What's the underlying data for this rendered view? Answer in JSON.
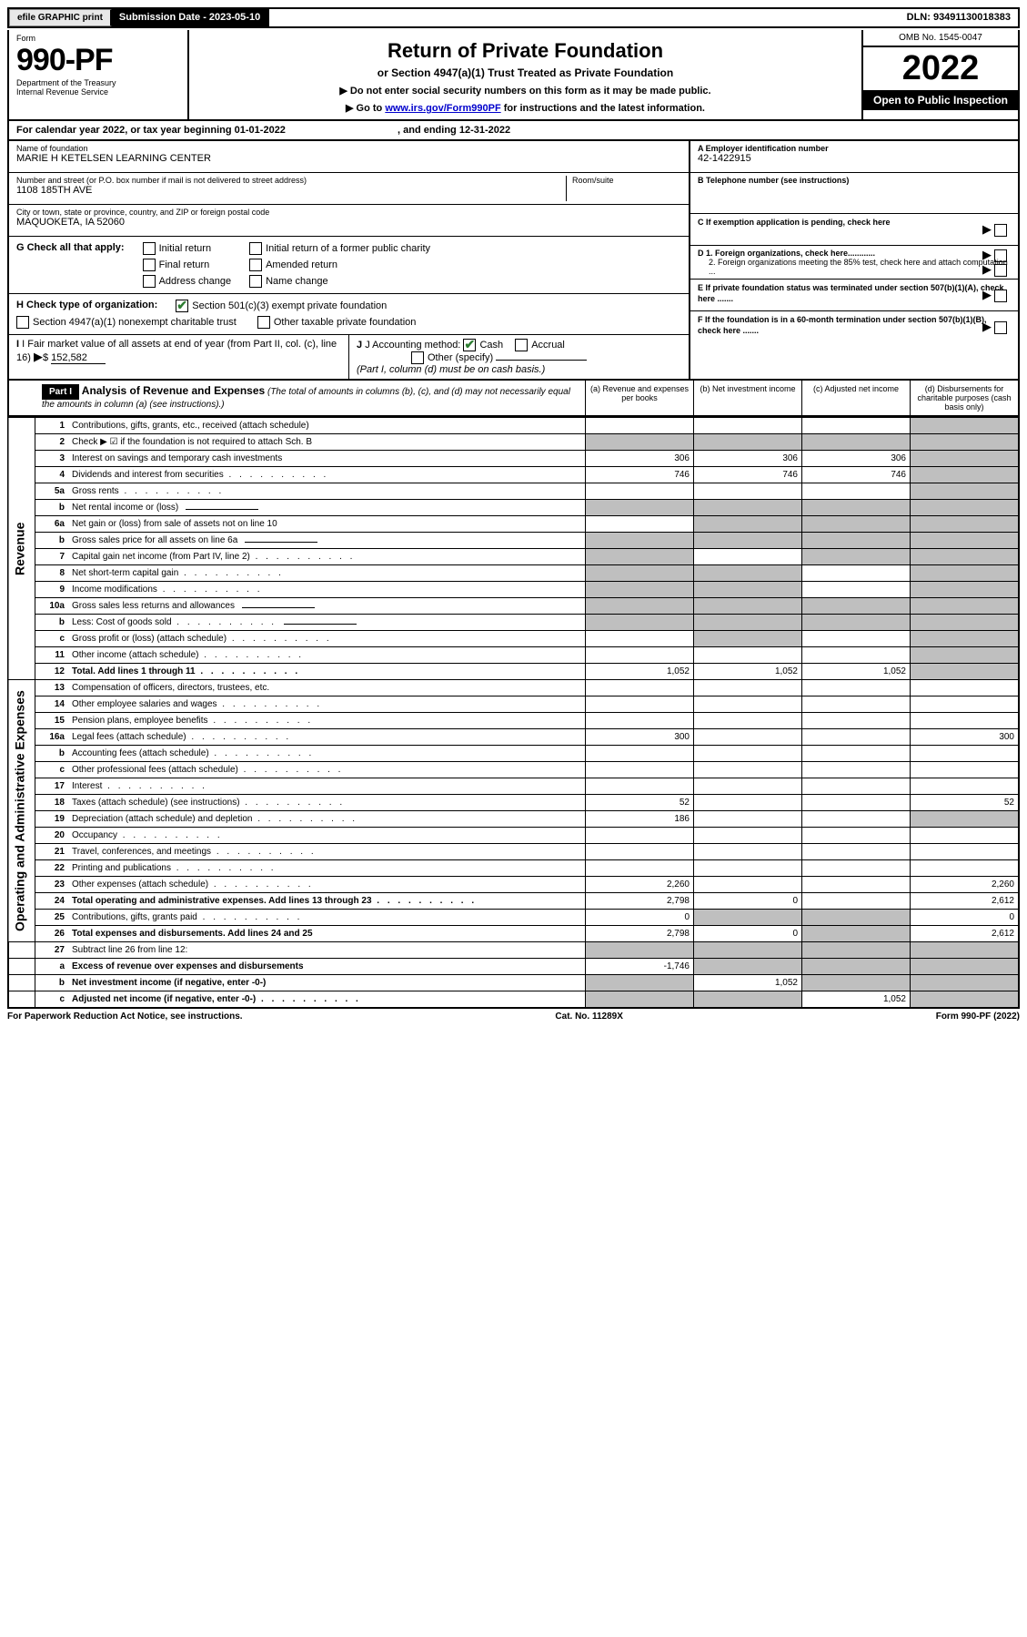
{
  "topbar": {
    "efile": "efile GRAPHIC print",
    "submission_label": "Submission Date - 2023-05-10",
    "dln": "DLN: 93491130018383"
  },
  "header": {
    "form_label": "Form",
    "form_no": "990-PF",
    "dept1": "Department of the Treasury",
    "dept2": "Internal Revenue Service",
    "title": "Return of Private Foundation",
    "subtitle": "or Section 4947(a)(1) Trust Treated as Private Foundation",
    "instr1": "▶ Do not enter social security numbers on this form as it may be made public.",
    "instr2_pre": "▶ Go to ",
    "instr2_link": "www.irs.gov/Form990PF",
    "instr2_post": " for instructions and the latest information.",
    "omb": "OMB No. 1545-0047",
    "year": "2022",
    "open": "Open to Public Inspection"
  },
  "calyear": {
    "text_pre": "For calendar year 2022, or tax year beginning ",
    "begin": "01-01-2022",
    "text_mid": ", and ending ",
    "end": "12-31-2022"
  },
  "info": {
    "name_label": "Name of foundation",
    "name": "MARIE H KETELSEN LEARNING CENTER",
    "addr_label": "Number and street (or P.O. box number if mail is not delivered to street address)",
    "addr": "1108 185TH AVE",
    "room_label": "Room/suite",
    "city_label": "City or town, state or province, country, and ZIP or foreign postal code",
    "city": "MAQUOKETA, IA  52060",
    "ein_label": "A Employer identification number",
    "ein": "42-1422915",
    "phone_label": "B Telephone number (see instructions)",
    "c_label": "C If exemption application is pending, check here",
    "d1_label": "D 1. Foreign organizations, check here............",
    "d2_label": "2. Foreign organizations meeting the 85% test, check here and attach computation ...",
    "e_label": "E  If private foundation status was terminated under section 507(b)(1)(A), check here .......",
    "f_label": "F  If the foundation is in a 60-month termination under section 507(b)(1)(B), check here .......",
    "g_label": "G Check all that apply:",
    "g_opts": [
      "Initial return",
      "Initial return of a former public charity",
      "Final return",
      "Amended return",
      "Address change",
      "Name change"
    ],
    "h_label": "H Check type of organization:",
    "h_opt1": "Section 501(c)(3) exempt private foundation",
    "h_opt2": "Section 4947(a)(1) nonexempt charitable trust",
    "h_opt3": "Other taxable private foundation",
    "i_label": "I Fair market value of all assets at end of year (from Part II, col. (c), line 16)",
    "i_value": "152,582",
    "j_label": "J Accounting method:",
    "j_opts": [
      "Cash",
      "Accrual",
      "Other (specify)"
    ],
    "j_note": "(Part I, column (d) must be on cash basis.)"
  },
  "part1": {
    "label": "Part I",
    "title": "Analysis of Revenue and Expenses",
    "note": " (The total of amounts in columns (b), (c), and (d) may not necessarily equal the amounts in column (a) (see instructions).)",
    "cols": {
      "a": "(a) Revenue and expenses per books",
      "b": "(b) Net investment income",
      "c": "(c) Adjusted net income",
      "d": "(d) Disbursements for charitable purposes (cash basis only)"
    }
  },
  "sections": {
    "revenue": "Revenue",
    "expenses": "Operating and Administrative Expenses"
  },
  "rows": [
    {
      "n": "1",
      "desc": "Contributions, gifts, grants, etc., received (attach schedule)",
      "a": "",
      "b": "",
      "c": "",
      "d": "",
      "d_shade": true,
      "sec": "rev"
    },
    {
      "n": "2",
      "desc": "Check ▶ ☑ if the foundation is not required to attach Sch. B",
      "a": "",
      "b": "",
      "c": "",
      "d": "",
      "all_shade": true,
      "sec": "rev",
      "bold_not": true
    },
    {
      "n": "3",
      "desc": "Interest on savings and temporary cash investments",
      "a": "306",
      "b": "306",
      "c": "306",
      "d": "",
      "d_shade": true,
      "sec": "rev"
    },
    {
      "n": "4",
      "desc": "Dividends and interest from securities",
      "a": "746",
      "b": "746",
      "c": "746",
      "d": "",
      "d_shade": true,
      "sec": "rev",
      "dots": true
    },
    {
      "n": "5a",
      "desc": "Gross rents",
      "a": "",
      "b": "",
      "c": "",
      "d": "",
      "d_shade": true,
      "sec": "rev",
      "dots": true
    },
    {
      "n": "b",
      "desc": "Net rental income or (loss)",
      "a": "",
      "b": "",
      "c": "",
      "d": "",
      "all_shade": true,
      "sec": "rev",
      "inline_box": true
    },
    {
      "n": "6a",
      "desc": "Net gain or (loss) from sale of assets not on line 10",
      "a": "",
      "b": "",
      "c": "",
      "d": "",
      "bcd_shade": true,
      "sec": "rev"
    },
    {
      "n": "b",
      "desc": "Gross sales price for all assets on line 6a",
      "a": "",
      "b": "",
      "c": "",
      "d": "",
      "all_shade": true,
      "sec": "rev",
      "inline_box": true
    },
    {
      "n": "7",
      "desc": "Capital gain net income (from Part IV, line 2)",
      "a": "",
      "b": "",
      "c": "",
      "d": "",
      "a_shade": true,
      "cd_shade": true,
      "sec": "rev",
      "dots": true
    },
    {
      "n": "8",
      "desc": "Net short-term capital gain",
      "a": "",
      "b": "",
      "c": "",
      "d": "",
      "ab_shade": true,
      "d_shade": true,
      "sec": "rev",
      "dots": true
    },
    {
      "n": "9",
      "desc": "Income modifications",
      "a": "",
      "b": "",
      "c": "",
      "d": "",
      "ab_shade": true,
      "d_shade": true,
      "sec": "rev",
      "dots": true
    },
    {
      "n": "10a",
      "desc": "Gross sales less returns and allowances",
      "a": "",
      "b": "",
      "c": "",
      "d": "",
      "all_shade": true,
      "sec": "rev",
      "inline_box": true
    },
    {
      "n": "b",
      "desc": "Less: Cost of goods sold",
      "a": "",
      "b": "",
      "c": "",
      "d": "",
      "all_shade": true,
      "sec": "rev",
      "inline_box": true,
      "dots": true
    },
    {
      "n": "c",
      "desc": "Gross profit or (loss) (attach schedule)",
      "a": "",
      "b": "",
      "c": "",
      "d": "",
      "b_shade": true,
      "d_shade": true,
      "sec": "rev",
      "dots": true
    },
    {
      "n": "11",
      "desc": "Other income (attach schedule)",
      "a": "",
      "b": "",
      "c": "",
      "d": "",
      "d_shade": true,
      "sec": "rev",
      "dots": true
    },
    {
      "n": "12",
      "desc": "Total. Add lines 1 through 11",
      "a": "1,052",
      "b": "1,052",
      "c": "1,052",
      "d": "",
      "d_shade": true,
      "sec": "rev",
      "bold": true,
      "dots": true
    },
    {
      "n": "13",
      "desc": "Compensation of officers, directors, trustees, etc.",
      "a": "",
      "b": "",
      "c": "",
      "d": "",
      "sec": "exp"
    },
    {
      "n": "14",
      "desc": "Other employee salaries and wages",
      "a": "",
      "b": "",
      "c": "",
      "d": "",
      "sec": "exp",
      "dots": true
    },
    {
      "n": "15",
      "desc": "Pension plans, employee benefits",
      "a": "",
      "b": "",
      "c": "",
      "d": "",
      "sec": "exp",
      "dots": true
    },
    {
      "n": "16a",
      "desc": "Legal fees (attach schedule)",
      "a": "300",
      "b": "",
      "c": "",
      "d": "300",
      "sec": "exp",
      "dots": true
    },
    {
      "n": "b",
      "desc": "Accounting fees (attach schedule)",
      "a": "",
      "b": "",
      "c": "",
      "d": "",
      "sec": "exp",
      "dots": true
    },
    {
      "n": "c",
      "desc": "Other professional fees (attach schedule)",
      "a": "",
      "b": "",
      "c": "",
      "d": "",
      "sec": "exp",
      "dots": true
    },
    {
      "n": "17",
      "desc": "Interest",
      "a": "",
      "b": "",
      "c": "",
      "d": "",
      "sec": "exp",
      "dots": true
    },
    {
      "n": "18",
      "desc": "Taxes (attach schedule) (see instructions)",
      "a": "52",
      "b": "",
      "c": "",
      "d": "52",
      "sec": "exp",
      "dots": true
    },
    {
      "n": "19",
      "desc": "Depreciation (attach schedule) and depletion",
      "a": "186",
      "b": "",
      "c": "",
      "d": "",
      "d_shade": true,
      "sec": "exp",
      "dots": true
    },
    {
      "n": "20",
      "desc": "Occupancy",
      "a": "",
      "b": "",
      "c": "",
      "d": "",
      "sec": "exp",
      "dots": true
    },
    {
      "n": "21",
      "desc": "Travel, conferences, and meetings",
      "a": "",
      "b": "",
      "c": "",
      "d": "",
      "sec": "exp",
      "dots": true
    },
    {
      "n": "22",
      "desc": "Printing and publications",
      "a": "",
      "b": "",
      "c": "",
      "d": "",
      "sec": "exp",
      "dots": true
    },
    {
      "n": "23",
      "desc": "Other expenses (attach schedule)",
      "a": "2,260",
      "b": "",
      "c": "",
      "d": "2,260",
      "sec": "exp",
      "dots": true
    },
    {
      "n": "24",
      "desc": "Total operating and administrative expenses. Add lines 13 through 23",
      "a": "2,798",
      "b": "0",
      "c": "",
      "d": "2,612",
      "sec": "exp",
      "bold": true,
      "dots": true
    },
    {
      "n": "25",
      "desc": "Contributions, gifts, grants paid",
      "a": "0",
      "b": "",
      "c": "",
      "d": "0",
      "b_shade": true,
      "c_shade": true,
      "sec": "exp",
      "dots": true
    },
    {
      "n": "26",
      "desc": "Total expenses and disbursements. Add lines 24 and 25",
      "a": "2,798",
      "b": "0",
      "c": "",
      "d": "2,612",
      "c_shade": true,
      "sec": "exp",
      "bold": true
    },
    {
      "n": "27",
      "desc": "Subtract line 26 from line 12:",
      "a": "",
      "b": "",
      "c": "",
      "d": "",
      "all_shade": true,
      "sec": "none"
    },
    {
      "n": "a",
      "desc": "Excess of revenue over expenses and disbursements",
      "a": "-1,746",
      "b": "",
      "c": "",
      "d": "",
      "bcd_shade": true,
      "sec": "none",
      "bold": true
    },
    {
      "n": "b",
      "desc": "Net investment income (if negative, enter -0-)",
      "a": "",
      "b": "1,052",
      "c": "",
      "d": "",
      "a_shade": true,
      "cd_shade": true,
      "sec": "none",
      "bold": true
    },
    {
      "n": "c",
      "desc": "Adjusted net income (if negative, enter -0-)",
      "a": "",
      "b": "",
      "c": "1,052",
      "d": "",
      "ab_shade": true,
      "d_shade": true,
      "sec": "none",
      "bold": true,
      "dots": true
    }
  ],
  "footer": {
    "left": "For Paperwork Reduction Act Notice, see instructions.",
    "mid": "Cat. No. 11289X",
    "right": "Form 990-PF (2022)"
  },
  "colors": {
    "shade": "#bfbfbf",
    "link": "#0000cc",
    "check": "#2e7d32"
  }
}
